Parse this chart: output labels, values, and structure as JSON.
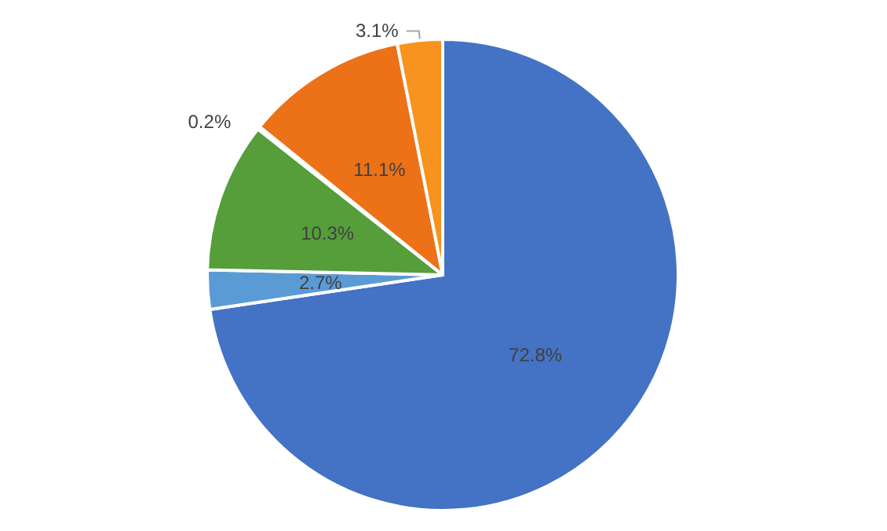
{
  "chart_data": {
    "type": "pie",
    "categories": [
      null,
      null,
      null,
      null,
      null,
      null
    ],
    "values": [
      72.8,
      2.7,
      10.3,
      0.2,
      11.1,
      3.1
    ],
    "colors": [
      "#4472c4",
      "#5b9bd5",
      "#559e3a",
      "#a5a5a5",
      "#ec7117",
      "#f7931e"
    ],
    "value_labels": [
      "72.8%",
      "2.7%",
      "10.3%",
      "0.2%",
      "11.1%",
      "3.1%"
    ],
    "legend": false
  }
}
